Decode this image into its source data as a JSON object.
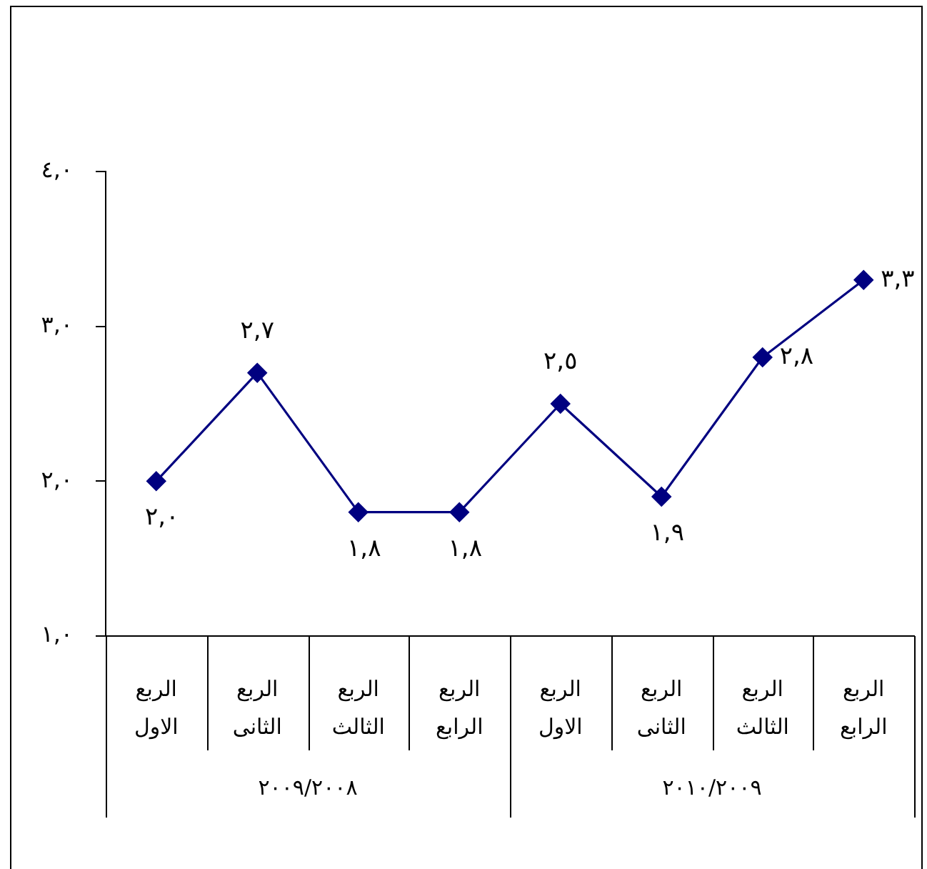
{
  "chart_data": {
    "type": "line",
    "categories": [
      "الربع الاول",
      "الربع الثانى",
      "الربع الثالث",
      "الربع الرابع",
      "الربع الاول",
      "الربع الثانى",
      "الربع الثالث",
      "الربع الرابع"
    ],
    "series": [
      {
        "color": "#000080",
        "values": [
          2.0,
          2.7,
          1.8,
          1.8,
          2.5,
          1.9,
          2.8,
          3.3
        ],
        "value_labels": [
          "٢,٠",
          "٢,٧",
          "١,٨",
          "١,٨",
          "٢,٥",
          "١,٩",
          "٢,٨",
          "٣,٣"
        ]
      }
    ],
    "ylim": [
      1,
      4
    ],
    "yticks": [
      {
        "value": 1,
        "label": "١,٠"
      },
      {
        "value": 2,
        "label": "٢,٠"
      },
      {
        "value": 3,
        "label": "٣,٠"
      },
      {
        "value": 4,
        "label": "٤,٠"
      }
    ],
    "marker": "diamond",
    "line_style": "solid",
    "grid": false,
    "annotations": [
      "٢٠٠٩/٢٠٠٨",
      "٢٠١٠/٢٠٠٩"
    ]
  }
}
